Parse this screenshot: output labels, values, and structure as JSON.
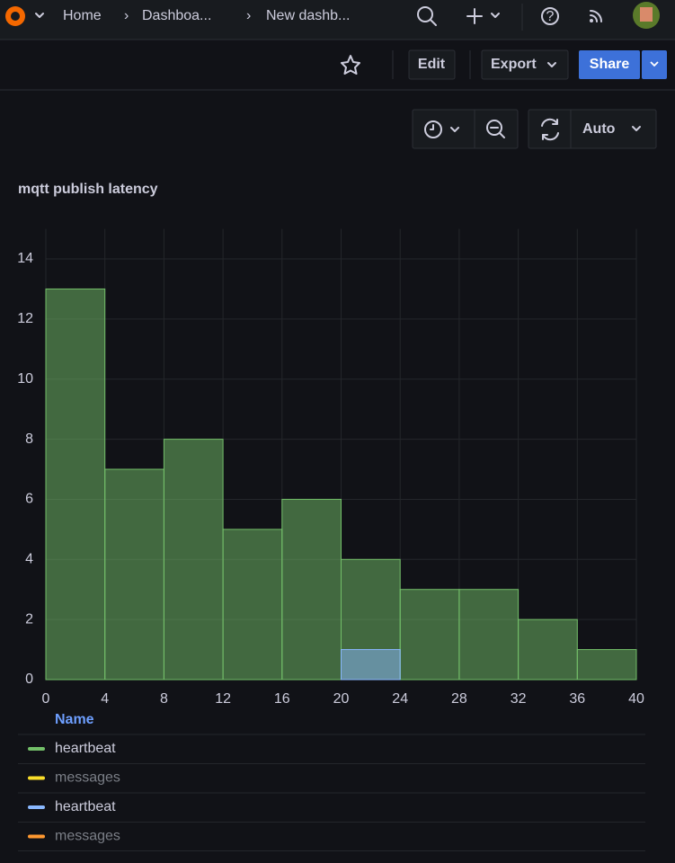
{
  "nav": {
    "breadcrumbs": [
      "Home",
      "Dashboa...",
      "New dashb..."
    ]
  },
  "toolbar": {
    "edit": "Edit",
    "export": "Export",
    "share": "Share"
  },
  "time_controls": {
    "refresh": "Auto"
  },
  "panel": {
    "title": "mqtt publish latency"
  },
  "chart_data": {
    "type": "histogram",
    "bins": [
      0,
      4,
      8,
      12,
      16,
      20,
      24,
      28,
      32,
      36,
      40
    ],
    "series": [
      {
        "name": "heartbeat",
        "color": "#73bf69",
        "values": [
          13,
          7,
          8,
          5,
          6,
          4,
          3,
          3,
          2,
          1
        ]
      },
      {
        "name": "heartbeat",
        "color": "#8ab8ff",
        "values": [
          0,
          0,
          0,
          0,
          0,
          1,
          0,
          0,
          0,
          0
        ]
      }
    ],
    "hidden_series": [
      {
        "name": "messages",
        "color": "#fade2a"
      },
      {
        "name": "messages",
        "color": "#ff9830"
      }
    ],
    "legend_header": "Name",
    "xlim": [
      0,
      40
    ],
    "xticks": [
      0,
      4,
      8,
      12,
      16,
      20,
      24,
      28,
      32,
      36,
      40
    ],
    "ylim": [
      0,
      15
    ],
    "yticks": [
      0,
      2,
      4,
      6,
      8,
      10,
      12,
      14
    ],
    "grid": true
  }
}
